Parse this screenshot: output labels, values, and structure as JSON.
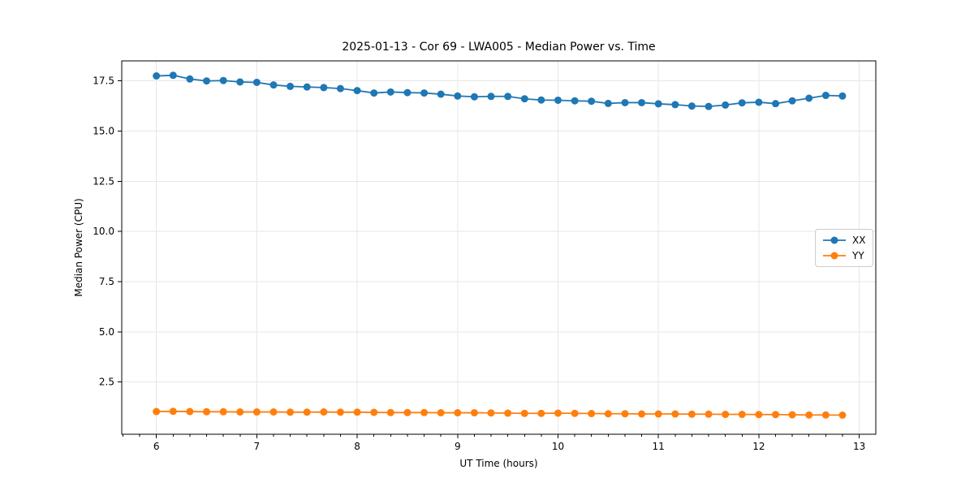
{
  "figure": {
    "kind": "matplotlib-style line plot"
  },
  "chart_data": {
    "type": "line",
    "title": "2025-01-13 - Cor 69 - LWA005 - Median Power vs. Time",
    "xlabel": "UT Time (hours)",
    "ylabel": "Median Power (CPU)",
    "xlim": [
      5.655,
      13.165
    ],
    "ylim": [
      -0.1,
      18.5
    ],
    "x_ticks": [
      6,
      7,
      8,
      9,
      10,
      11,
      12,
      13
    ],
    "x_tick_labels": [
      "6",
      "7",
      "8",
      "9",
      "10",
      "11",
      "12",
      "13"
    ],
    "x_minor_tick_step": 0.1666667,
    "y_ticks": [
      2.5,
      5.0,
      7.5,
      10.0,
      12.5,
      15.0,
      17.5
    ],
    "y_tick_labels": [
      "2.5",
      "5.0",
      "7.5",
      "10.0",
      "12.5",
      "15.0",
      "17.5"
    ],
    "grid": true,
    "grid_color": "#e7e7e7",
    "spine_color": "#000000",
    "legend_position": "center right",
    "x": [
      6.0,
      6.167,
      6.333,
      6.5,
      6.667,
      6.833,
      7.0,
      7.167,
      7.333,
      7.5,
      7.667,
      7.833,
      8.0,
      8.167,
      8.333,
      8.5,
      8.667,
      8.833,
      9.0,
      9.167,
      9.333,
      9.5,
      9.667,
      9.833,
      10.0,
      10.167,
      10.333,
      10.5,
      10.667,
      10.833,
      11.0,
      11.167,
      11.333,
      11.5,
      11.667,
      11.833,
      12.0,
      12.167,
      12.333,
      12.5,
      12.667,
      12.833
    ],
    "series": [
      {
        "name": "XX",
        "color": "#1f77b4",
        "values": [
          17.75,
          17.78,
          17.6,
          17.5,
          17.52,
          17.45,
          17.43,
          17.3,
          17.23,
          17.2,
          17.17,
          17.12,
          17.02,
          16.9,
          16.95,
          16.92,
          16.9,
          16.84,
          16.75,
          16.71,
          16.73,
          16.73,
          16.61,
          16.55,
          16.54,
          16.51,
          16.49,
          16.38,
          16.42,
          16.42,
          16.36,
          16.32,
          16.25,
          16.23,
          16.3,
          16.41,
          16.44,
          16.37,
          16.51,
          16.64,
          16.78,
          16.75
        ]
      },
      {
        "name": "YY",
        "color": "#ff7f0e",
        "values": [
          1.03,
          1.04,
          1.03,
          1.02,
          1.02,
          1.01,
          1.01,
          1.01,
          1.0,
          1.0,
          1.01,
          1.0,
          1.0,
          0.99,
          0.98,
          0.98,
          0.98,
          0.97,
          0.97,
          0.97,
          0.96,
          0.95,
          0.94,
          0.94,
          0.95,
          0.94,
          0.93,
          0.92,
          0.92,
          0.91,
          0.91,
          0.91,
          0.9,
          0.9,
          0.89,
          0.89,
          0.88,
          0.88,
          0.87,
          0.86,
          0.86,
          0.85
        ]
      }
    ]
  }
}
